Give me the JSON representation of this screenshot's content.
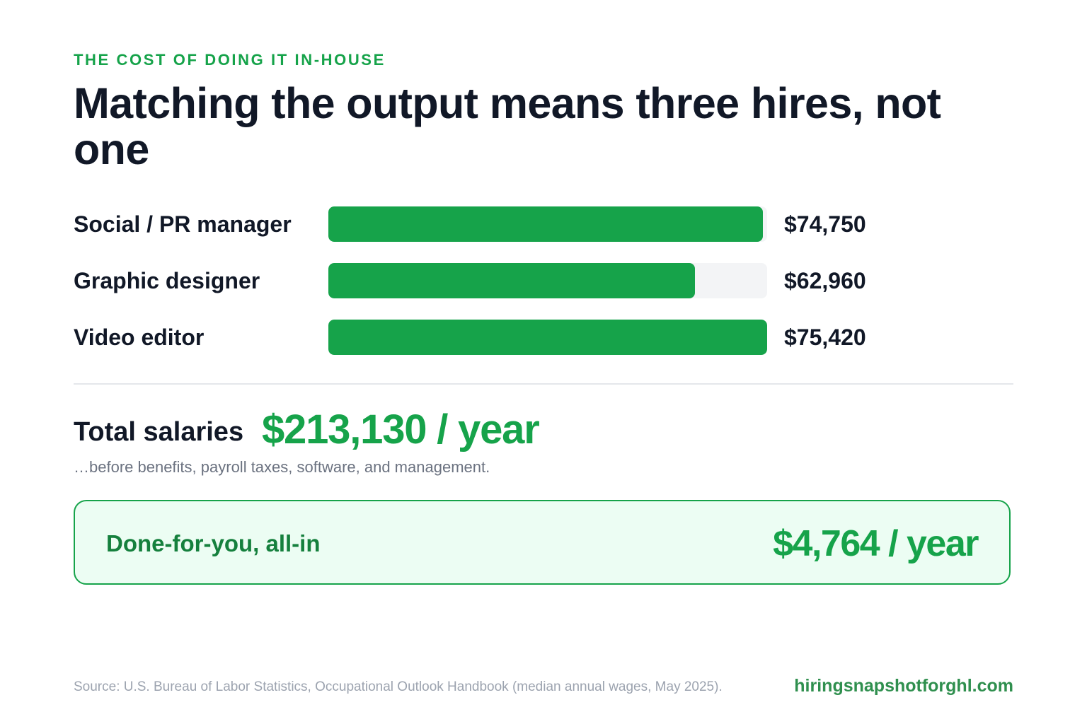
{
  "eyebrow": "THE COST OF DOING IT IN-HOUSE",
  "title": "Matching the output means three hires, not one",
  "chart_data": {
    "type": "bar",
    "orientation": "horizontal",
    "categories": [
      "Social / PR manager",
      "Graphic designer",
      "Video editor"
    ],
    "values": [
      74750,
      62960,
      75420
    ],
    "value_labels": [
      "$74,750",
      "$62,960",
      "$75,420"
    ],
    "xlim": [
      0,
      75420
    ],
    "grid": false,
    "colors": {
      "bar": "#16a34a",
      "track": "#f3f4f6"
    }
  },
  "total": {
    "label": "Total salaries",
    "value": "$213,130 / year",
    "note": "…before benefits, payroll taxes, software, and management."
  },
  "offer": {
    "label": "Done-for-you, all-in",
    "value": "$4,764 / year"
  },
  "footer": {
    "source": "Source: U.S. Bureau of Labor Statistics, Occupational Outlook Handbook (median annual wages, May 2025).",
    "site": "hiringsnapshotforghl.com"
  },
  "colors": {
    "accent": "#16a34a",
    "text": "#111827",
    "muted": "#6b7280",
    "offer_bg": "#ecfdf3"
  }
}
